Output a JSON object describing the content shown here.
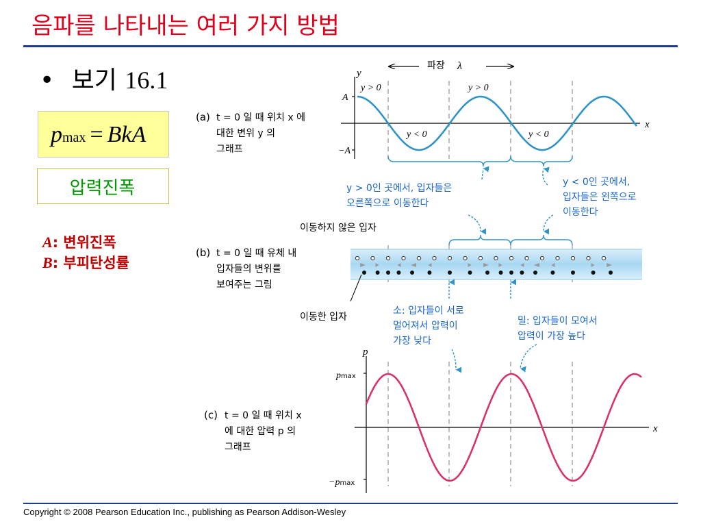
{
  "slide": {
    "title": "음파를 나타내는 여러 가지 방법",
    "bullet_marker": "•",
    "bullet_text": "보기",
    "bullet_number": "16.1",
    "formula": {
      "p": "p",
      "sub": "max",
      "eq": "=",
      "rhs": "BkA"
    },
    "amplitude_label": "압력진폭",
    "definitions": [
      {
        "symbol": "A",
        "colon": ":",
        "text": "변위진폭"
      },
      {
        "symbol": "B",
        "colon": ":",
        "text": "부피탄성률"
      }
    ],
    "copyright": "Copyright © 2008 Pearson Education Inc., publishing as Pearson Addison-Wesley"
  },
  "figure": {
    "wavelength_label": "파장",
    "wavelength_symbol": "λ",
    "panel_a": {
      "tag": "(a)",
      "axis_y": "y",
      "axis_x": "x",
      "tick_pos": "A",
      "tick_neg": "−A",
      "region_pos": "y > 0",
      "region_neg": "y < 0",
      "caption": [
        "t = 0 일 때 위치 x 에",
        "대한 변위 y 의",
        "그래프"
      ]
    },
    "note_right": {
      "line1": "y > 0인 곳에서, 입자들은",
      "line2": "오른쪽으로 이동한다"
    },
    "note_left": {
      "line1": "y < 0인 곳에서,",
      "line2": "입자들은 왼쪽으로",
      "line3": "이동한다"
    },
    "label_stationary": "이동하지 않은 입자",
    "panel_b": {
      "tag": "(b)",
      "caption": [
        "t = 0 일 때 유체 내",
        "입자들의 변위를",
        "보여주는 그림"
      ]
    },
    "label_moved": "이동한 입자",
    "rarefaction": [
      "소: 입자들이 서로",
      "멀어져서 압력이",
      "가장 낮다"
    ],
    "compression": [
      "밀: 입자들이 모여서",
      "압력이 가장 높다"
    ],
    "panel_c": {
      "tag": "(c)",
      "axis_y": "p",
      "axis_x": "x",
      "tick_pos": "p",
      "tick_pos_sub": "max",
      "tick_neg": "−p",
      "tick_neg_sub": "max",
      "caption": [
        "t = 0 일 때 위치 x",
        "에 대한 압력 p 의",
        "그래프"
      ]
    },
    "colors": {
      "displacement": "#2f93c8",
      "pressure": "#d6336c",
      "guide": "#9a9a9a",
      "arrow": "#2f93c8"
    }
  }
}
